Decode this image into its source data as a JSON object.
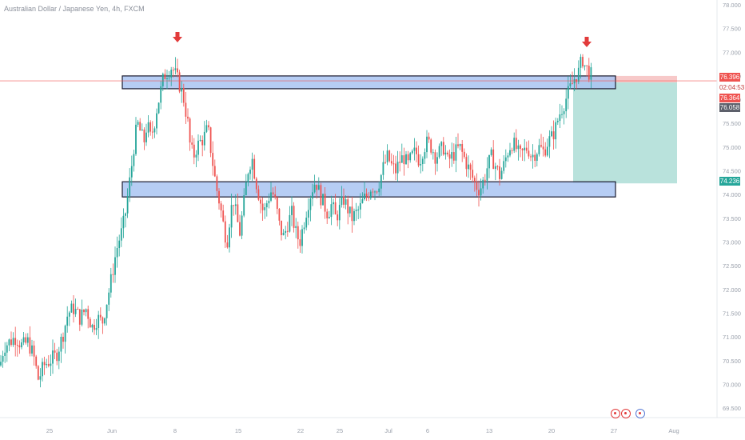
{
  "header": {
    "symbol_title": "Australian Dollar / Japanese Yen, 4h, FXCM"
  },
  "badges": {
    "current_price": "76.396",
    "countdown": "02:04:53",
    "entry_level": "76.364",
    "range_low": "76.058",
    "target_level": "74.236"
  },
  "colors": {
    "bullish": "#26a69a",
    "bearish": "#ef5350",
    "zone_fill": "#a9c4f2",
    "stop_zone": "#f7c9c9",
    "target_zone": "#b9e2dc",
    "arrow": "#e23b3b"
  },
  "toolbar": {
    "icons": [
      "record-icon",
      "target-icon",
      "alert-bell-icon"
    ]
  },
  "chart_data": {
    "type": "candlestick",
    "title": "Australian Dollar / Japanese Yen, 4h, FXCM",
    "y_axis": {
      "range": [
        69.3,
        78.1
      ],
      "ticks": [
        "69.500",
        "70.000",
        "70.500",
        "71.000",
        "71.500",
        "72.000",
        "72.500",
        "73.000",
        "73.500",
        "74.000",
        "74.500",
        "75.000",
        "75.500",
        "76.000",
        "76.500",
        "77.000",
        "77.500",
        "78.000"
      ]
    },
    "x_axis": {
      "ticks": [
        "25",
        "Jun",
        "8",
        "15",
        "22",
        "25",
        "Jul",
        "6",
        "13",
        "20",
        "27",
        "Aug"
      ]
    },
    "price_path": [
      [
        0,
        70.4
      ],
      [
        5,
        70.8
      ],
      [
        12,
        70.9
      ],
      [
        20,
        71.0
      ],
      [
        28,
        70.8
      ],
      [
        35,
        70.9
      ],
      [
        42,
        70.6
      ],
      [
        48,
        70.1
      ],
      [
        55,
        70.4
      ],
      [
        62,
        70.5
      ],
      [
        70,
        70.6
      ],
      [
        78,
        71.0
      ],
      [
        85,
        71.5
      ],
      [
        92,
        71.6
      ],
      [
        100,
        71.4
      ],
      [
        108,
        71.6
      ],
      [
        115,
        71.2
      ],
      [
        122,
        71.4
      ],
      [
        128,
        71.3
      ],
      [
        133,
        71.7
      ],
      [
        138,
        72.1
      ],
      [
        143,
        72.6
      ],
      [
        148,
        73.0
      ],
      [
        152,
        73.2
      ],
      [
        156,
        73.5
      ],
      [
        160,
        74.0
      ],
      [
        164,
        74.5
      ],
      [
        168,
        75.1
      ],
      [
        172,
        75.5
      ],
      [
        176,
        75.3
      ],
      [
        180,
        75.1
      ],
      [
        184,
        75.5
      ],
      [
        188,
        75.2
      ],
      [
        192,
        75.4
      ],
      [
        196,
        75.8
      ],
      [
        200,
        76.1
      ],
      [
        205,
        76.5
      ],
      [
        210,
        76.6
      ],
      [
        215,
        76.7
      ],
      [
        220,
        76.5
      ],
      [
        225,
        76.3
      ],
      [
        230,
        76.0
      ],
      [
        235,
        75.5
      ],
      [
        238,
        75.0
      ],
      [
        242,
        74.8
      ],
      [
        246,
        75.0
      ],
      [
        250,
        75.1
      ],
      [
        255,
        75.2
      ],
      [
        260,
        75.4
      ],
      [
        265,
        74.8
      ],
      [
        270,
        74.2
      ],
      [
        275,
        73.8
      ],
      [
        280,
        73.3
      ],
      [
        284,
        73.0
      ],
      [
        288,
        73.6
      ],
      [
        292,
        73.9
      ],
      [
        296,
        73.5
      ],
      [
        300,
        73.2
      ],
      [
        305,
        73.8
      ],
      [
        310,
        74.5
      ],
      [
        315,
        74.8
      ],
      [
        320,
        74.3
      ],
      [
        325,
        73.9
      ],
      [
        330,
        73.6
      ],
      [
        335,
        73.9
      ],
      [
        340,
        74.1
      ],
      [
        345,
        73.8
      ],
      [
        350,
        73.3
      ],
      [
        355,
        73.1
      ],
      [
        360,
        73.4
      ],
      [
        365,
        73.6
      ],
      [
        370,
        73.2
      ],
      [
        375,
        73.0
      ],
      [
        380,
        73.4
      ],
      [
        385,
        73.8
      ],
      [
        390,
        74.1
      ],
      [
        395,
        74.3
      ],
      [
        400,
        74.0
      ],
      [
        405,
        73.8
      ],
      [
        410,
        73.6
      ],
      [
        415,
        73.8
      ],
      [
        420,
        73.5
      ],
      [
        425,
        73.7
      ],
      [
        430,
        73.9
      ],
      [
        435,
        73.7
      ],
      [
        440,
        73.5
      ],
      [
        445,
        73.6
      ],
      [
        450,
        73.7
      ],
      [
        455,
        73.9
      ],
      [
        460,
        74.0
      ],
      [
        465,
        74.2
      ],
      [
        470,
        74.1
      ],
      [
        475,
        74.3
      ],
      [
        480,
        74.6
      ],
      [
        485,
        74.8
      ],
      [
        490,
        74.6
      ],
      [
        495,
        74.5
      ],
      [
        500,
        74.7
      ],
      [
        505,
        74.8
      ],
      [
        510,
        74.6
      ],
      [
        515,
        74.8
      ],
      [
        520,
        74.9
      ],
      [
        525,
        74.7
      ],
      [
        530,
        75.0
      ],
      [
        535,
        75.1
      ],
      [
        540,
        75.0
      ],
      [
        545,
        74.8
      ],
      [
        550,
        74.9
      ],
      [
        555,
        75.0
      ],
      [
        560,
        74.7
      ],
      [
        565,
        74.8
      ],
      [
        570,
        74.9
      ],
      [
        575,
        75.0
      ],
      [
        580,
        74.8
      ],
      [
        585,
        74.6
      ],
      [
        590,
        74.4
      ],
      [
        595,
        74.2
      ],
      [
        600,
        74.1
      ],
      [
        605,
        74.3
      ],
      [
        610,
        74.6
      ],
      [
        615,
        74.8
      ],
      [
        620,
        74.6
      ],
      [
        625,
        74.4
      ],
      [
        630,
        74.6
      ],
      [
        635,
        74.9
      ],
      [
        640,
        75.1
      ],
      [
        645,
        75.0
      ],
      [
        650,
        74.8
      ],
      [
        655,
        74.9
      ],
      [
        660,
        75.0
      ],
      [
        665,
        74.8
      ],
      [
        670,
        74.9
      ],
      [
        675,
        75.0
      ],
      [
        680,
        74.9
      ],
      [
        685,
        75.1
      ],
      [
        690,
        75.2
      ],
      [
        695,
        75.4
      ],
      [
        700,
        75.7
      ],
      [
        705,
        75.9
      ],
      [
        710,
        76.1
      ],
      [
        715,
        76.3
      ],
      [
        720,
        76.5
      ],
      [
        725,
        76.6
      ],
      [
        728,
        76.9
      ],
      [
        732,
        76.7
      ],
      [
        736,
        76.6
      ],
      [
        740,
        76.5
      ]
    ],
    "zones": [
      {
        "name": "resistance",
        "low": 76.23,
        "high": 76.5,
        "start_x": 153,
        "end_x": 770
      },
      {
        "name": "support",
        "low": 73.95,
        "high": 74.27,
        "start_x": 153,
        "end_x": 770
      }
    ],
    "position": {
      "entry": 76.364,
      "stop": 76.5,
      "target": 74.236,
      "start_x": 717,
      "end_x": 847
    },
    "horizontal_line": 76.396,
    "arrows": [
      {
        "at_x": 222
      },
      {
        "at_x": 734
      }
    ]
  }
}
